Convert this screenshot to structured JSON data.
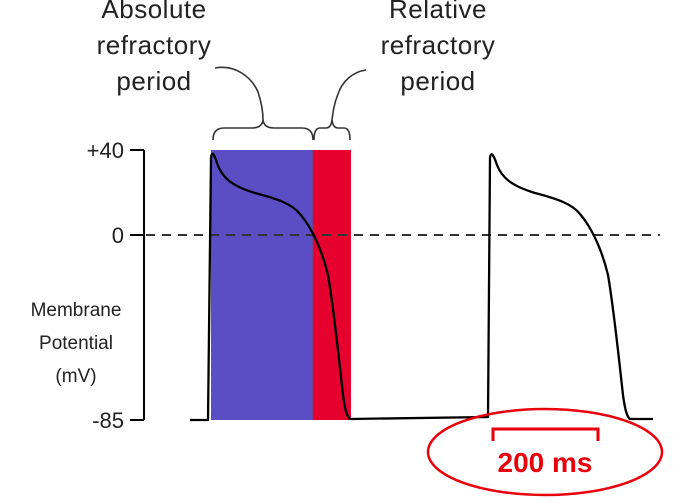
{
  "colors": {
    "absolute_refractory": "#5b4ec4",
    "relative_refractory": "#e5002d",
    "trace": "#000000",
    "scale_bar": "#e8000b"
  },
  "labels": {
    "absolute_line1": "Absolute",
    "absolute_line2": "refractory",
    "absolute_line3": "period",
    "relative_line1": "Relative",
    "relative_line2": "refractory",
    "relative_line3": "period",
    "ylabel_line1": "Membrane",
    "ylabel_line2": "Potential",
    "ylabel_line3": "(mV)",
    "scale_bar": "200 ms"
  },
  "chart_data": {
    "type": "line",
    "y_ticks": [
      "+40",
      "0",
      "-85"
    ],
    "y_tick_values": [
      40,
      0,
      -85
    ],
    "threshold_line": 0,
    "scale_bar_ms": 200
  }
}
